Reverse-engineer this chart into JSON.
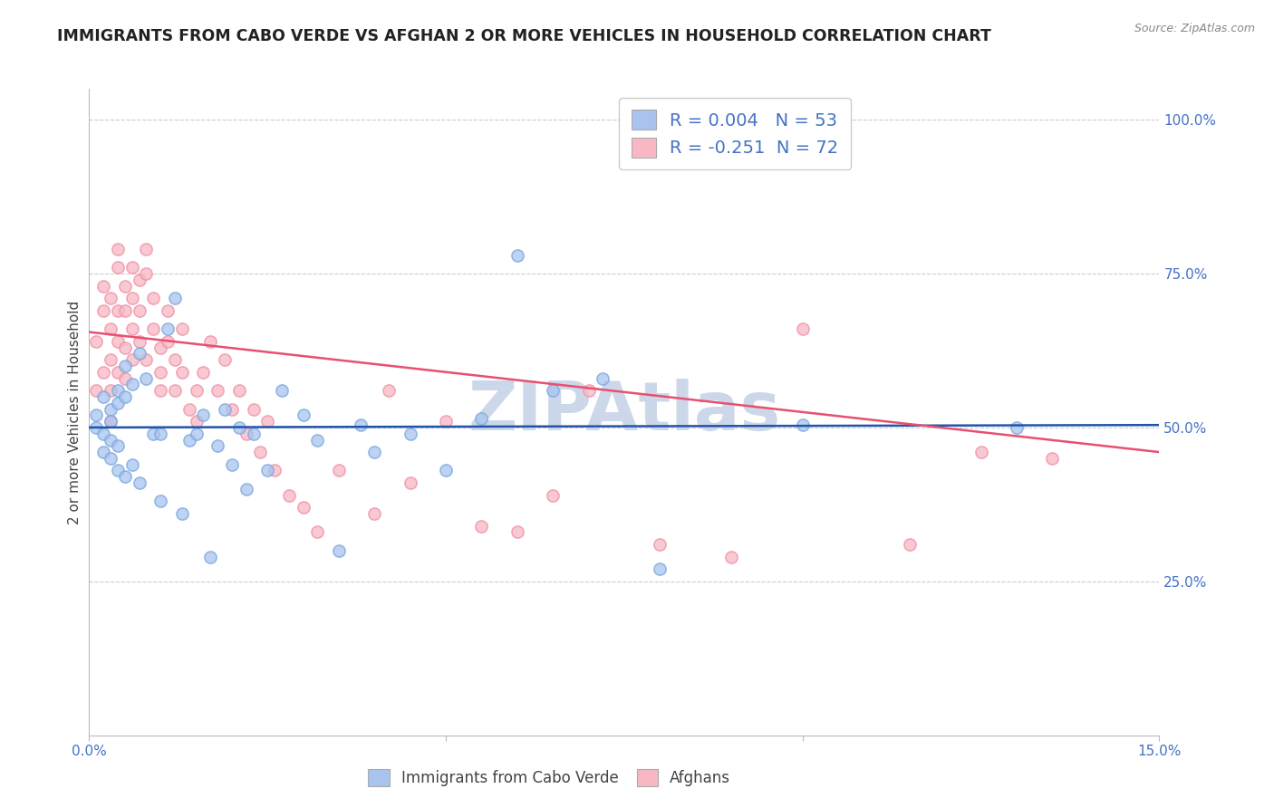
{
  "title": "IMMIGRANTS FROM CABO VERDE VS AFGHAN 2 OR MORE VEHICLES IN HOUSEHOLD CORRELATION CHART",
  "source": "Source: ZipAtlas.com",
  "ylabel_left": "2 or more Vehicles in Household",
  "x_min": 0.0,
  "x_max": 0.15,
  "y_min": 0.0,
  "y_max": 1.05,
  "x_ticks": [
    0.0,
    0.05,
    0.1,
    0.15
  ],
  "x_tick_labels": [
    "0.0%",
    "",
    "",
    "15.0%"
  ],
  "y_ticks_right": [
    0.25,
    0.5,
    0.75,
    1.0
  ],
  "y_tick_labels_right": [
    "25.0%",
    "50.0%",
    "75.0%",
    "100.0%"
  ],
  "cabo_verde_color": "#a8c4ee",
  "afghan_color": "#f7b8c4",
  "cabo_verde_edge_color": "#7aa8e0",
  "afghan_edge_color": "#f090a8",
  "cabo_verde_line_color": "#2255aa",
  "afghan_line_color": "#e85070",
  "cabo_verde_R": 0.004,
  "cabo_verde_N": 53,
  "afghan_R": -0.251,
  "afghan_N": 72,
  "background_color": "#ffffff",
  "grid_color": "#cccccc",
  "title_color": "#222222",
  "axis_label_color": "#444444",
  "right_axis_color": "#4472c4",
  "watermark_color": "#ccd8ea",
  "marker_size": 90,
  "marker_alpha": 0.75,
  "cabo_verde_x": [
    0.001,
    0.001,
    0.002,
    0.002,
    0.002,
    0.003,
    0.003,
    0.003,
    0.003,
    0.004,
    0.004,
    0.004,
    0.004,
    0.005,
    0.005,
    0.005,
    0.006,
    0.006,
    0.007,
    0.007,
    0.008,
    0.009,
    0.01,
    0.01,
    0.011,
    0.012,
    0.013,
    0.014,
    0.015,
    0.016,
    0.017,
    0.018,
    0.019,
    0.02,
    0.021,
    0.022,
    0.023,
    0.025,
    0.027,
    0.03,
    0.032,
    0.035,
    0.038,
    0.04,
    0.045,
    0.05,
    0.055,
    0.06,
    0.065,
    0.072,
    0.08,
    0.1,
    0.13
  ],
  "cabo_verde_y": [
    0.5,
    0.52,
    0.49,
    0.55,
    0.46,
    0.53,
    0.51,
    0.48,
    0.45,
    0.56,
    0.54,
    0.47,
    0.43,
    0.6,
    0.55,
    0.42,
    0.57,
    0.44,
    0.62,
    0.41,
    0.58,
    0.49,
    0.38,
    0.49,
    0.66,
    0.71,
    0.36,
    0.48,
    0.49,
    0.52,
    0.29,
    0.47,
    0.53,
    0.44,
    0.5,
    0.4,
    0.49,
    0.43,
    0.56,
    0.52,
    0.48,
    0.3,
    0.505,
    0.46,
    0.49,
    0.43,
    0.515,
    0.78,
    0.56,
    0.58,
    0.27,
    0.505,
    0.5
  ],
  "afghan_x": [
    0.001,
    0.001,
    0.002,
    0.002,
    0.002,
    0.003,
    0.003,
    0.003,
    0.003,
    0.003,
    0.004,
    0.004,
    0.004,
    0.004,
    0.004,
    0.005,
    0.005,
    0.005,
    0.005,
    0.006,
    0.006,
    0.006,
    0.006,
    0.007,
    0.007,
    0.007,
    0.008,
    0.008,
    0.008,
    0.009,
    0.009,
    0.01,
    0.01,
    0.01,
    0.011,
    0.011,
    0.012,
    0.012,
    0.013,
    0.013,
    0.014,
    0.015,
    0.015,
    0.016,
    0.017,
    0.018,
    0.019,
    0.02,
    0.021,
    0.022,
    0.023,
    0.024,
    0.025,
    0.026,
    0.028,
    0.03,
    0.032,
    0.035,
    0.04,
    0.042,
    0.045,
    0.05,
    0.055,
    0.06,
    0.065,
    0.07,
    0.08,
    0.09,
    0.1,
    0.115,
    0.125,
    0.135
  ],
  "afghan_y": [
    0.64,
    0.56,
    0.69,
    0.73,
    0.59,
    0.66,
    0.71,
    0.61,
    0.56,
    0.51,
    0.79,
    0.76,
    0.69,
    0.64,
    0.59,
    0.73,
    0.69,
    0.63,
    0.58,
    0.76,
    0.71,
    0.66,
    0.61,
    0.74,
    0.69,
    0.64,
    0.79,
    0.75,
    0.61,
    0.71,
    0.66,
    0.63,
    0.59,
    0.56,
    0.69,
    0.64,
    0.61,
    0.56,
    0.66,
    0.59,
    0.53,
    0.56,
    0.51,
    0.59,
    0.64,
    0.56,
    0.61,
    0.53,
    0.56,
    0.49,
    0.53,
    0.46,
    0.51,
    0.43,
    0.39,
    0.37,
    0.33,
    0.43,
    0.36,
    0.56,
    0.41,
    0.51,
    0.34,
    0.33,
    0.39,
    0.56,
    0.31,
    0.29,
    0.66,
    0.31,
    0.46,
    0.45
  ]
}
